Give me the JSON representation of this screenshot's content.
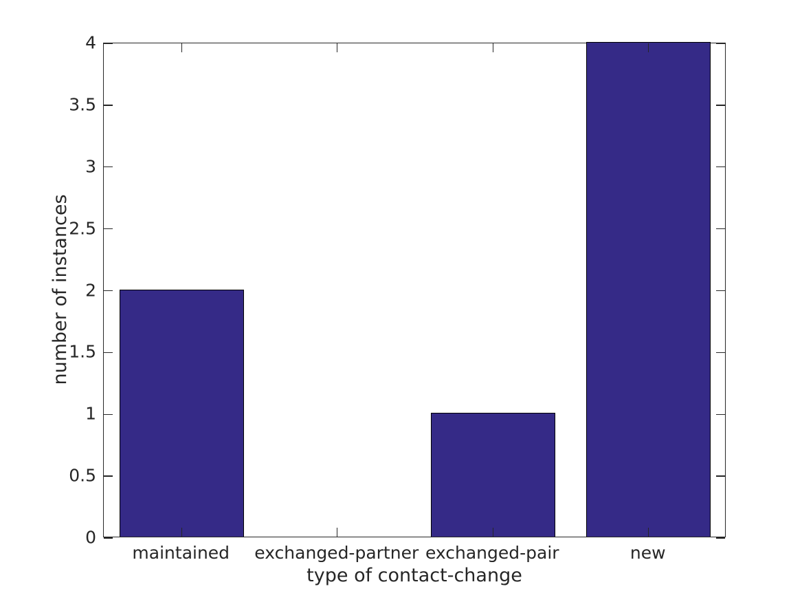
{
  "figure": {
    "background": "#ffffff"
  },
  "chart_data": {
    "type": "bar",
    "title": "",
    "categories": [
      "maintained",
      "exchanged-partner",
      "exchanged-pair",
      "new"
    ],
    "values": [
      2,
      0,
      1,
      4
    ],
    "xlabel": "type of contact-change",
    "ylabel": "number of instances",
    "ylim": [
      0,
      4
    ],
    "yticks": [
      0,
      0.5,
      1,
      1.5,
      2,
      2.5,
      3,
      3.5,
      4
    ],
    "ytick_labels": [
      "0",
      "0.5",
      "1",
      "1.5",
      "2",
      "2.5",
      "3",
      "3.5",
      "4"
    ],
    "bar_width_fraction": 0.8,
    "bar_color": "#352a87",
    "bar_edge_color": "#000000",
    "axis_color": "#262626",
    "text_color": "#262626",
    "grid": false,
    "legend": null,
    "box": true,
    "ticks_direction": "in"
  }
}
